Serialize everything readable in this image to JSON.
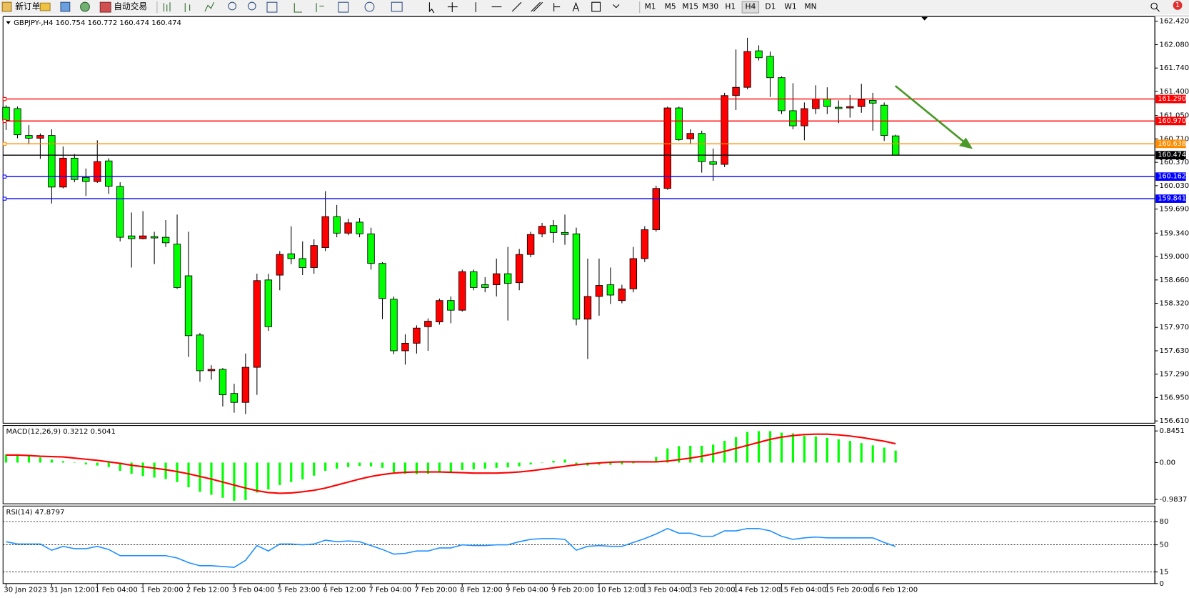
{
  "toolbar": {
    "new_order": "新订单",
    "auto_trading": "自动交易",
    "timeframes": [
      "M1",
      "M5",
      "M15",
      "M30",
      "H1",
      "H4",
      "D1",
      "W1",
      "MN"
    ],
    "badge": "1"
  },
  "chart_data": [
    {
      "type": "candlestick",
      "title": "GBPJPY-,H4  160.754 160.772 160.474 160.474",
      "categories": [
        "30 Jan 2023",
        null,
        null,
        null,
        "31 Jan 12:00",
        null,
        null,
        null,
        "1 Feb 04:00",
        null,
        null,
        null,
        "1 Feb 20:00",
        null,
        null,
        null,
        "2 Feb 12:00",
        null,
        null,
        null,
        "3 Feb 04:00",
        null,
        null,
        null,
        "5 Feb 23:00",
        null,
        null,
        null,
        "6 Feb 12:00",
        null,
        null,
        null,
        "7 Feb 04:00",
        null,
        null,
        null,
        "7 Feb 20:00",
        null,
        null,
        null,
        "8 Feb 12:00",
        null,
        null,
        null,
        "9 Feb 04:00",
        null,
        null,
        null,
        "9 Feb 20:00",
        null,
        null,
        null,
        "10 Feb 12:00",
        null,
        null,
        null,
        "13 Feb 04:00",
        null,
        null,
        null,
        "13 Feb 20:00",
        null,
        null,
        null,
        "14 Feb 12:00",
        null,
        null,
        null,
        "15 Feb 04:00",
        null,
        null,
        null,
        "15 Feb 20:00",
        null,
        null,
        null,
        "16 Feb 12:00",
        null,
        null
      ],
      "open": [
        161.17,
        161.15,
        160.76,
        160.72,
        160.76,
        160.01,
        160.43,
        160.15,
        160.09,
        160.39,
        160.02,
        159.3,
        159.26,
        159.29,
        159.28,
        159.18,
        158.72,
        157.86,
        157.34,
        157.36,
        157.01,
        156.88,
        157.39,
        158.66,
        158.73,
        159.04,
        158.97,
        158.84,
        159.13,
        159.58,
        159.34,
        159.5,
        159.33,
        158.9,
        158.38,
        157.63,
        157.74,
        157.98,
        158.05,
        158.36,
        158.22,
        158.78,
        158.59,
        158.59,
        158.75,
        158.62,
        159.03,
        159.33,
        159.45,
        159.35,
        159.33,
        158.09,
        158.42,
        158.59,
        158.36,
        158.53,
        158.97,
        159.39,
        159.99,
        161.16,
        160.71,
        160.79,
        160.38,
        160.34,
        161.34,
        161.46,
        161.99,
        161.91,
        161.6,
        161.12,
        160.9,
        161.15,
        161.29,
        161.17,
        161.16,
        161.18,
        161.27,
        161.2,
        160.754
      ],
      "high": [
        161.2,
        161.18,
        160.91,
        160.79,
        160.85,
        160.6,
        160.49,
        160.28,
        160.69,
        160.43,
        160.08,
        159.64,
        159.66,
        159.36,
        159.53,
        159.61,
        159.36,
        157.89,
        157.42,
        157.38,
        157.15,
        157.59,
        158.75,
        158.75,
        159.08,
        159.44,
        159.22,
        159.25,
        159.95,
        159.75,
        159.55,
        159.56,
        159.42,
        158.92,
        158.42,
        157.87,
        158.0,
        158.1,
        158.39,
        158.42,
        158.81,
        158.81,
        158.7,
        158.97,
        159.14,
        159.11,
        159.36,
        159.49,
        159.53,
        159.61,
        159.42,
        158.97,
        158.97,
        158.84,
        158.59,
        159.14,
        159.44,
        160.03,
        161.18,
        161.18,
        160.85,
        160.83,
        160.57,
        161.38,
        162.01,
        162.18,
        162.07,
        161.98,
        161.62,
        161.52,
        161.24,
        161.49,
        161.46,
        161.27,
        161.35,
        161.51,
        161.38,
        161.24,
        160.772
      ],
      "low": [
        160.84,
        160.72,
        160.63,
        160.42,
        159.77,
        159.99,
        160.08,
        159.88,
        160.07,
        159.91,
        159.22,
        158.84,
        159.25,
        158.89,
        159.14,
        158.53,
        157.54,
        157.18,
        157.21,
        156.82,
        156.73,
        156.71,
        156.99,
        157.92,
        158.51,
        158.89,
        158.73,
        158.75,
        159.08,
        159.28,
        159.31,
        159.28,
        158.81,
        158.09,
        157.58,
        157.43,
        157.59,
        157.63,
        158.01,
        158.03,
        158.2,
        158.51,
        158.48,
        158.42,
        158.07,
        158.51,
        158.99,
        159.28,
        159.2,
        159.17,
        158.0,
        157.51,
        158.14,
        158.31,
        158.32,
        158.48,
        158.92,
        159.36,
        159.97,
        160.68,
        160.63,
        160.22,
        160.1,
        160.3,
        161.13,
        161.43,
        161.85,
        161.32,
        161.07,
        160.85,
        160.69,
        161.07,
        161.07,
        160.94,
        161.02,
        161.09,
        160.83,
        160.68,
        160.474
      ],
      "close": [
        160.98,
        160.77,
        160.72,
        160.76,
        160.01,
        160.43,
        160.12,
        160.09,
        160.38,
        160.02,
        159.28,
        159.26,
        159.3,
        159.27,
        159.2,
        158.55,
        157.85,
        157.34,
        157.36,
        156.99,
        156.88,
        157.39,
        158.65,
        157.98,
        159.03,
        158.97,
        158.84,
        159.16,
        159.58,
        159.34,
        159.49,
        159.33,
        158.9,
        158.39,
        157.63,
        157.74,
        157.96,
        158.06,
        158.36,
        158.22,
        158.78,
        158.55,
        158.55,
        158.75,
        158.61,
        159.03,
        159.32,
        159.44,
        159.35,
        159.32,
        158.09,
        158.42,
        158.58,
        158.44,
        158.53,
        158.97,
        159.39,
        159.99,
        161.16,
        160.7,
        160.79,
        160.38,
        160.34,
        161.34,
        161.46,
        161.98,
        161.89,
        161.6,
        161.12,
        160.9,
        161.15,
        161.29,
        161.18,
        161.15,
        161.18,
        161.28,
        161.23,
        160.76,
        160.474
      ],
      "up_color": "#ff0000",
      "down_color": "#00ff00",
      "ylim": [
        156.577,
        162.486
      ],
      "yticks": [
        {
          "value": 162.42,
          "label": "162.420"
        },
        {
          "value": 162.08,
          "label": "162.080"
        },
        {
          "value": 161.74,
          "label": "161.740"
        },
        {
          "value": 161.4,
          "label": "161.400"
        },
        {
          "value": 161.05,
          "label": "161.050"
        },
        {
          "value": 160.71,
          "label": "160.710"
        },
        {
          "value": 160.37,
          "label": "160.370"
        },
        {
          "value": 160.03,
          "label": "160.030"
        },
        {
          "value": 159.69,
          "label": "159.690"
        },
        {
          "value": 159.34,
          "label": "159.340"
        },
        {
          "value": 159,
          "label": "159.000"
        },
        {
          "value": 158.66,
          "label": "158.660"
        },
        {
          "value": 158.32,
          "label": "158.320"
        },
        {
          "value": 157.97,
          "label": "157.970"
        },
        {
          "value": 157.63,
          "label": "157.630"
        },
        {
          "value": 157.29,
          "label": "157.290"
        },
        {
          "value": 156.95,
          "label": "156.950"
        },
        {
          "value": 156.61,
          "label": "156.610"
        }
      ],
      "levels": [
        {
          "value": 161.29,
          "label": "161.290",
          "color": "#ff0000"
        },
        {
          "value": 160.97,
          "label": "160.970",
          "color": "#ff0000"
        },
        {
          "value": 160.638,
          "label": "160.638",
          "color": "#ff8c00"
        },
        {
          "value": 160.474,
          "label": "160.474",
          "color": "#000000"
        },
        {
          "value": 160.162,
          "label": "160.162",
          "color": "#0000ff"
        },
        {
          "value": 159.841,
          "label": "159.841",
          "color": "#0000ff"
        }
      ]
    },
    {
      "type": "macd",
      "title": "MACD(12,26,9) 0.3212 0.5041",
      "histogram": {
        "color": "#00ff00",
        "values": [
          0.22,
          0.2,
          0.17,
          0.14,
          0.08,
          0.04,
          0.0,
          -0.05,
          -0.08,
          -0.12,
          -0.22,
          -0.3,
          -0.36,
          -0.4,
          -0.44,
          -0.52,
          -0.66,
          -0.78,
          -0.86,
          -0.94,
          -1.02,
          -1.0,
          -0.8,
          -0.72,
          -0.6,
          -0.52,
          -0.45,
          -0.35,
          -0.22,
          -0.16,
          -0.12,
          -0.09,
          -0.1,
          -0.14,
          -0.26,
          -0.3,
          -0.31,
          -0.3,
          -0.27,
          -0.25,
          -0.2,
          -0.18,
          -0.16,
          -0.14,
          -0.13,
          -0.1,
          -0.05,
          0.0,
          0.05,
          0.08,
          -0.06,
          -0.08,
          -0.06,
          -0.06,
          -0.05,
          -0.02,
          0.04,
          0.15,
          0.38,
          0.44,
          0.45,
          0.45,
          0.48,
          0.58,
          0.68,
          0.82,
          0.84,
          0.84,
          0.8,
          0.78,
          0.72,
          0.7,
          0.66,
          0.62,
          0.58,
          0.52,
          0.46,
          0.4,
          0.3212
        ]
      },
      "signal": {
        "color": "#ff0000",
        "values": [
          0.2,
          0.2,
          0.19,
          0.17,
          0.16,
          0.15,
          0.12,
          0.09,
          0.06,
          0.02,
          -0.02,
          -0.07,
          -0.11,
          -0.15,
          -0.19,
          -0.24,
          -0.3,
          -0.37,
          -0.44,
          -0.52,
          -0.6,
          -0.68,
          -0.75,
          -0.8,
          -0.82,
          -0.81,
          -0.78,
          -0.74,
          -0.68,
          -0.6,
          -0.52,
          -0.44,
          -0.37,
          -0.32,
          -0.28,
          -0.26,
          -0.25,
          -0.25,
          -0.25,
          -0.26,
          -0.27,
          -0.28,
          -0.28,
          -0.28,
          -0.27,
          -0.25,
          -0.22,
          -0.18,
          -0.14,
          -0.1,
          -0.06,
          -0.03,
          -0.01,
          0.01,
          0.02,
          0.02,
          0.02,
          0.02,
          0.04,
          0.08,
          0.12,
          0.17,
          0.23,
          0.3,
          0.38,
          0.46,
          0.54,
          0.62,
          0.68,
          0.72,
          0.75,
          0.76,
          0.76,
          0.74,
          0.71,
          0.67,
          0.62,
          0.57,
          0.5041
        ]
      },
      "ylim": [
        -1.1,
        0.99
      ],
      "yticks": [
        0.8451,
        {
          "value": 0,
          "label": "0.00"
        },
        -0.9837
      ]
    },
    {
      "type": "line",
      "title": "RSI(14) 47.8797",
      "color": "#1e90ff",
      "values": [
        54,
        51,
        51,
        51,
        43,
        48,
        45,
        45,
        48,
        44,
        36,
        36,
        36,
        36,
        36,
        33,
        27,
        23,
        23,
        22,
        21,
        30,
        49,
        42,
        51,
        51,
        50,
        51,
        56,
        54,
        55,
        54,
        49,
        44,
        38,
        39,
        42,
        42,
        46,
        46,
        50,
        49,
        49,
        50,
        50,
        54,
        57,
        58,
        58,
        57,
        43,
        48,
        49,
        48,
        48,
        53,
        58,
        64,
        71,
        65,
        65,
        61,
        61,
        68,
        68,
        71,
        71,
        68,
        61,
        57,
        59,
        60,
        59,
        59,
        59,
        59,
        59,
        53,
        47.8797
      ],
      "ylim": [
        0,
        100
      ],
      "yticks": [
        0,
        15,
        50,
        80
      ],
      "grid": true
    }
  ]
}
